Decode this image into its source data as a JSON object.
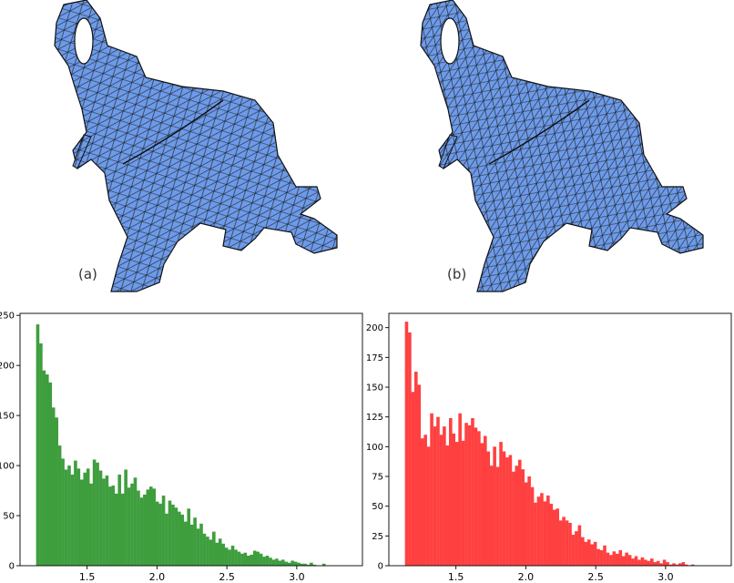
{
  "figure": {
    "panels": [
      {
        "label": "(a)",
        "mesh_color": "#6495ed",
        "icon": "elephant-mesh-render"
      },
      {
        "label": "(b)",
        "mesh_color": "#6495ed",
        "icon": "elephant-mesh-render"
      }
    ]
  },
  "chart_data": [
    {
      "type": "bar",
      "title": "",
      "xlabel": "",
      "ylabel": "",
      "color": "#3e9e3e",
      "xlim": [
        1.02,
        3.47
      ],
      "ylim": [
        0,
        252
      ],
      "xticks": [
        "1.5",
        "2.0",
        "2.5",
        "3.0"
      ],
      "xtick_values": [
        1.5,
        2.0,
        2.5,
        3.0
      ],
      "yticks": [
        "0",
        "50",
        "100",
        "150",
        "200",
        "250"
      ],
      "ytick_values": [
        0,
        50,
        100,
        150,
        200,
        250
      ],
      "bin_width": 0.0225,
      "bin_start": 1.135,
      "values": [
        241,
        222,
        195,
        191,
        183,
        158,
        148,
        120,
        107,
        96,
        100,
        91,
        105,
        97,
        86,
        93,
        97,
        82,
        106,
        103,
        95,
        87,
        90,
        79,
        80,
        72,
        91,
        72,
        96,
        78,
        82,
        88,
        75,
        68,
        71,
        76,
        79,
        77,
        64,
        62,
        70,
        52,
        65,
        61,
        58,
        54,
        51,
        44,
        57,
        41,
        48,
        37,
        42,
        32,
        29,
        26,
        34,
        23,
        27,
        22,
        18,
        16,
        20,
        16,
        14,
        12,
        13,
        10,
        11,
        15,
        14,
        12,
        9,
        10,
        8,
        6,
        7,
        5,
        6,
        4,
        3,
        5,
        4,
        3,
        2,
        2,
        1,
        3,
        1,
        0,
        0,
        2
      ]
    },
    {
      "type": "bar",
      "title": "",
      "xlabel": "",
      "ylabel": "",
      "color": "#ff4040",
      "xlim": [
        1.02,
        3.47
      ],
      "ylim": [
        0,
        212
      ],
      "xticks": [
        "1.5",
        "2.0",
        "2.5",
        "3.0"
      ],
      "xtick_values": [
        1.5,
        2.0,
        2.5,
        3.0
      ],
      "yticks": [
        "0",
        "25",
        "50",
        "75",
        "100",
        "125",
        "150",
        "175",
        "200"
      ],
      "ytick_values": [
        0,
        25,
        50,
        75,
        100,
        125,
        150,
        175,
        200
      ],
      "bin_width": 0.0225,
      "bin_start": 1.135,
      "values": [
        205,
        196,
        146,
        163,
        152,
        107,
        110,
        100,
        128,
        117,
        125,
        110,
        117,
        101,
        124,
        111,
        104,
        128,
        105,
        120,
        118,
        124,
        116,
        113,
        103,
        109,
        96,
        84,
        100,
        83,
        104,
        96,
        91,
        93,
        79,
        84,
        89,
        81,
        70,
        75,
        66,
        53,
        58,
        61,
        54,
        59,
        52,
        47,
        48,
        38,
        41,
        38,
        36,
        26,
        29,
        34,
        24,
        20,
        22,
        18,
        20,
        14,
        13,
        17,
        11,
        9,
        12,
        10,
        13,
        8,
        11,
        9,
        6,
        8,
        5,
        7,
        5,
        4,
        6,
        3,
        4,
        2,
        5,
        3,
        1,
        2,
        1,
        2,
        3,
        1,
        0,
        1
      ]
    }
  ]
}
